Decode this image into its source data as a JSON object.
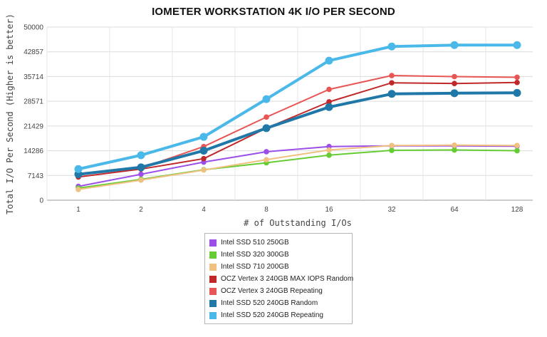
{
  "chart_data": {
    "type": "line",
    "title": "IOMETER WORKSTATION 4K I/O PER SECOND",
    "xlabel": "# of Outstanding I/Os",
    "ylabel": "Total I/O Per Second (Higher is better)",
    "categories": [
      "1",
      "2",
      "4",
      "8",
      "16",
      "32",
      "64",
      "128"
    ],
    "yticks": [
      "0",
      "7143",
      "14286",
      "21429",
      "28571",
      "35714",
      "42857",
      "50000"
    ],
    "ylim": [
      0,
      50000
    ],
    "grid": true,
    "legend_position": "bottom",
    "series": [
      {
        "name": "Intel SSD 510 250GB",
        "color": "#9b4fe8",
        "values": [
          4000,
          7500,
          11000,
          14000,
          15500,
          15700,
          15700,
          15600
        ]
      },
      {
        "name": "Intel SSD 320 300GB",
        "color": "#66cc33",
        "values": [
          3500,
          6000,
          8800,
          10800,
          13000,
          14400,
          14500,
          14300
        ]
      },
      {
        "name": "Intel SSD 710 200GB",
        "color": "#f0c080",
        "values": [
          3100,
          5800,
          8700,
          11700,
          14500,
          15800,
          15900,
          15800
        ]
      },
      {
        "name": "OCZ Vertex 3 240GB MAX IOPS Random",
        "color": "#c0282a",
        "values": [
          6700,
          9000,
          12000,
          20800,
          28400,
          33900,
          33700,
          34000
        ]
      },
      {
        "name": "OCZ Vertex 3 240GB Repeating",
        "color": "#e85555",
        "values": [
          7500,
          9300,
          15500,
          24000,
          32000,
          36000,
          35700,
          35500
        ]
      },
      {
        "name": "Intel SSD 520 240GB Random",
        "color": "#1f78a8",
        "values": [
          7500,
          9500,
          14300,
          20800,
          26900,
          30700,
          30900,
          31000
        ]
      },
      {
        "name": "Intel SSD 520 240GB Repeating",
        "color": "#4ab8e8",
        "values": [
          9000,
          13000,
          18300,
          29200,
          40300,
          44400,
          44800,
          44800
        ]
      }
    ]
  }
}
